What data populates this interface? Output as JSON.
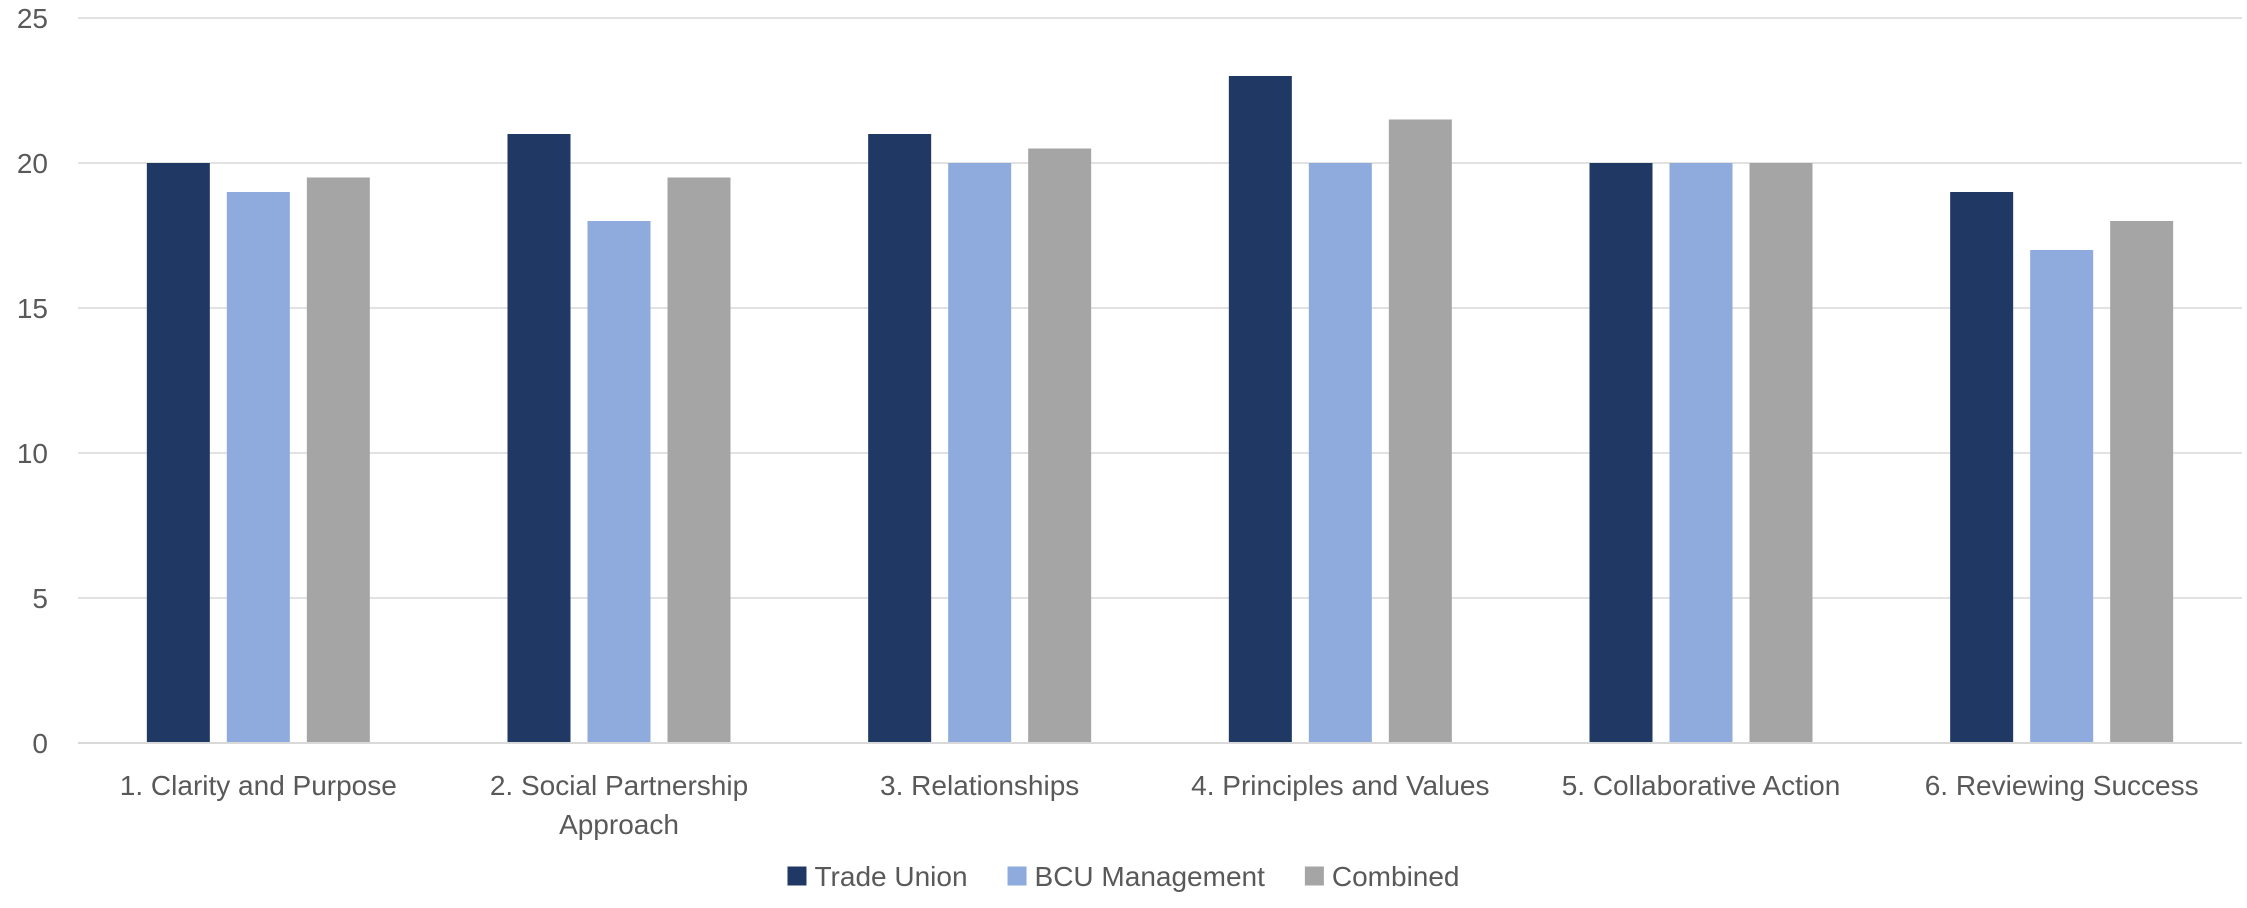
{
  "chart_data": {
    "type": "bar",
    "title": "",
    "xlabel": "",
    "ylabel": "",
    "ylim": [
      0,
      25
    ],
    "yticks": [
      0,
      5,
      10,
      15,
      20,
      25
    ],
    "grid": true,
    "legend_position": "bottom",
    "categories": [
      [
        "1. Clarity and Purpose"
      ],
      [
        "2. Social Partnership",
        "Approach"
      ],
      [
        "3. Relationships"
      ],
      [
        "4. Principles and Values"
      ],
      [
        "5. Collaborative Action"
      ],
      [
        "6. Reviewing Success"
      ]
    ],
    "series": [
      {
        "name": "Trade Union",
        "color": "#203864",
        "values": [
          20,
          21,
          21,
          23,
          20,
          19
        ]
      },
      {
        "name": "BCU Management",
        "color": "#8FAADC",
        "values": [
          19,
          18,
          20,
          20,
          20,
          17
        ]
      },
      {
        "name": "Combined",
        "color": "#A5A5A5",
        "values": [
          19.5,
          19.5,
          20.5,
          21.5,
          20,
          18
        ]
      }
    ]
  }
}
